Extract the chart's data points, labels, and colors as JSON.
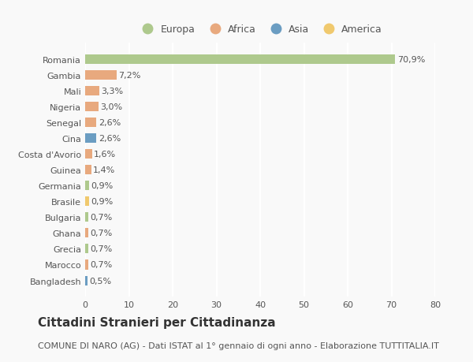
{
  "categories": [
    "Romania",
    "Gambia",
    "Mali",
    "Nigeria",
    "Senegal",
    "Cina",
    "Costa d'Avorio",
    "Guinea",
    "Germania",
    "Brasile",
    "Bulgaria",
    "Ghana",
    "Grecia",
    "Marocco",
    "Bangladesh"
  ],
  "values": [
    70.9,
    7.2,
    3.3,
    3.0,
    2.6,
    2.6,
    1.6,
    1.4,
    0.9,
    0.9,
    0.7,
    0.7,
    0.7,
    0.7,
    0.5
  ],
  "labels": [
    "70,9%",
    "7,2%",
    "3,3%",
    "3,0%",
    "2,6%",
    "2,6%",
    "1,6%",
    "1,4%",
    "0,9%",
    "0,9%",
    "0,7%",
    "0,7%",
    "0,7%",
    "0,7%",
    "0,5%"
  ],
  "continents": [
    "Europa",
    "Africa",
    "Africa",
    "Africa",
    "Africa",
    "Asia",
    "Africa",
    "Africa",
    "Europa",
    "America",
    "Europa",
    "Africa",
    "Europa",
    "Africa",
    "Asia"
  ],
  "continent_colors": {
    "Europa": "#aec98d",
    "Africa": "#e8a97e",
    "Asia": "#6b9dc2",
    "America": "#f0c96e"
  },
  "legend_items": [
    "Europa",
    "Africa",
    "Asia",
    "America"
  ],
  "legend_colors": [
    "#aec98d",
    "#e8a97e",
    "#6b9dc2",
    "#f0c96e"
  ],
  "title": "Cittadini Stranieri per Cittadinanza",
  "subtitle": "COMUNE DI NARO (AG) - Dati ISTAT al 1° gennaio di ogni anno - Elaborazione TUTTITALIA.IT",
  "xlim": [
    0,
    80
  ],
  "xticks": [
    0,
    10,
    20,
    30,
    40,
    50,
    60,
    70,
    80
  ],
  "background_color": "#f9f9f9",
  "grid_color": "#ffffff",
  "bar_height": 0.6,
  "title_fontsize": 11,
  "subtitle_fontsize": 8,
  "label_fontsize": 8,
  "tick_fontsize": 8,
  "legend_fontsize": 9
}
